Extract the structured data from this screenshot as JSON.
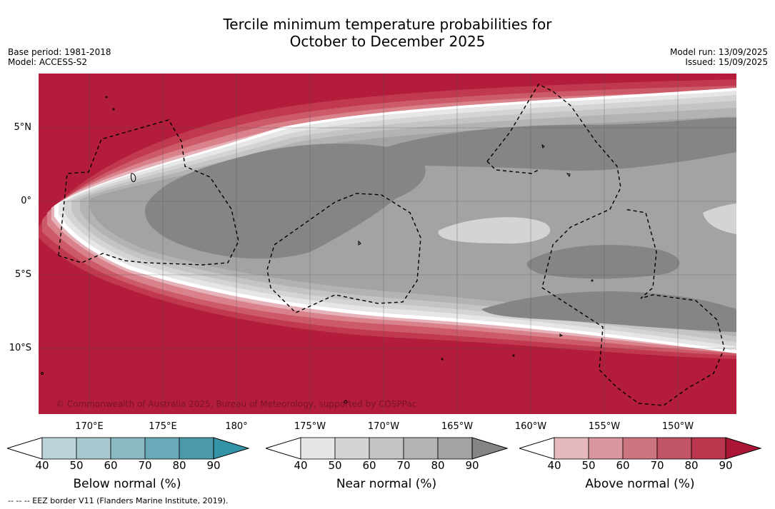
{
  "title": {
    "line1": "Tercile minimum temperature probabilities for",
    "line2": "October to December 2025"
  },
  "meta": {
    "base_period": "Base period: 1981-2018",
    "model": "Model: ACCESS-S2",
    "model_run": "Model run: 13/09/2025",
    "issued": "Issued: 15/09/2025"
  },
  "map": {
    "lat_labels": [
      "5°N",
      "0°",
      "5°S",
      "10°S"
    ],
    "lon_labels": [
      "170°E",
      "175°E",
      "180°",
      "175°W",
      "170°W",
      "165°W",
      "160°W",
      "155°W",
      "150°W"
    ],
    "copyright": "© Commonwealth of Australia 2025, Bureau of Meteorology, supported by COSPPac",
    "colors": {
      "above_90": "#b31c3a",
      "above_80": "#c0394f",
      "above_70": "#cc5a69",
      "above_60": "#d9828c",
      "above_50": "#e5b3b9",
      "near_40": "#e6e6e6",
      "near_50": "#d4d4d4",
      "near_60": "#c4c4c4",
      "near_70": "#b3b3b3",
      "near_80": "#a3a3a3",
      "near_90": "#858585"
    }
  },
  "colorbars": [
    {
      "label": "Below normal (%)",
      "ticks": [
        "40",
        "50",
        "60",
        "70",
        "80",
        "90"
      ],
      "colors": [
        "#bdd3db",
        "#a7c8cf",
        "#8ab9c4",
        "#6aaab8",
        "#4b9aac",
        "#3493a7"
      ]
    },
    {
      "label": "Near normal (%)",
      "ticks": [
        "40",
        "50",
        "60",
        "70",
        "80",
        "90"
      ],
      "colors": [
        "#e6e6e6",
        "#d4d4d4",
        "#c4c4c4",
        "#b3b3b3",
        "#a3a3a3",
        "#858585"
      ]
    },
    {
      "label": "Above normal (%)",
      "ticks": [
        "40",
        "50",
        "60",
        "70",
        "80",
        "90"
      ],
      "colors": [
        "#e5b8bd",
        "#d9979d",
        "#cc757f",
        "#c25565",
        "#b9364d",
        "#ab1636"
      ]
    }
  ],
  "footer": "--  --  -- EEZ border V11 (Flanders Marine Institute, 2019)."
}
